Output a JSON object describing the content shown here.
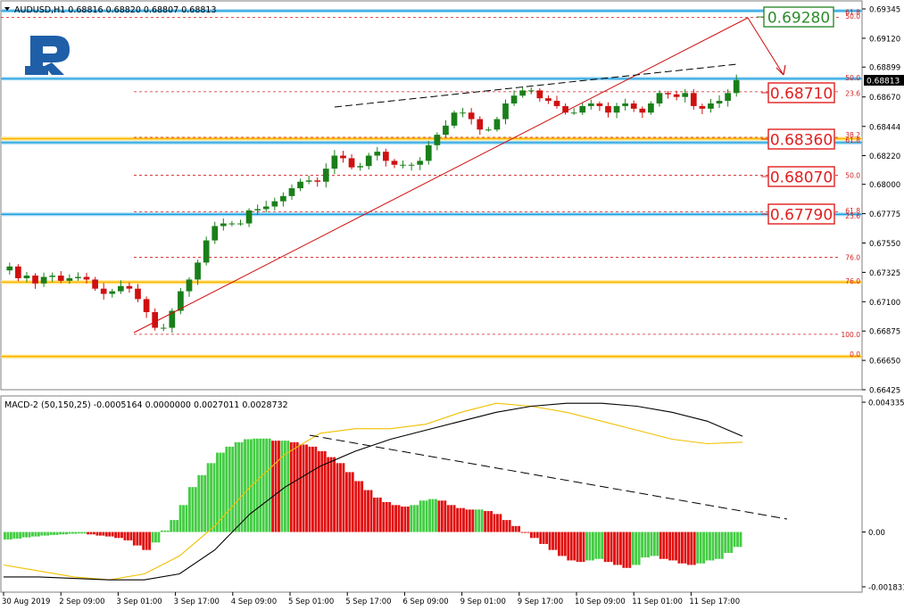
{
  "header": {
    "symbol_line": "AUDUSD,H1  0.68816 0.68820 0.68807 0.68813"
  },
  "price_axis": {
    "ticks": [
      "0.69345",
      "0.69120",
      "0.68899",
      "0.68670",
      "0.68444",
      "0.68220",
      "0.68000",
      "0.67775",
      "0.67550",
      "0.67325",
      "0.67100",
      "0.66875",
      "0.66650",
      "0.66425"
    ],
    "current_price": "0.68813"
  },
  "macd": {
    "header": "MACD-2 (50,150,25) -0.0005164 0.0000000 0.0027011 0.0028732",
    "axis_ticks": [
      "0.0043352",
      "0.00",
      "-0.001831"
    ]
  },
  "time_axis": {
    "labels": [
      "30 Aug 2019",
      "2 Sep 09:00",
      "3 Sep 01:00",
      "3 Sep 17:00",
      "4 Sep 09:00",
      "5 Sep 01:00",
      "5 Sep 17:00",
      "6 Sep 09:00",
      "9 Sep 01:00",
      "9 Sep 17:00",
      "10 Sep 09:00",
      "11 Sep 01:00",
      "11 Sep 17:00"
    ]
  },
  "callouts": [
    {
      "text": "0.69280",
      "color": "#2e8b2e"
    },
    {
      "text": "0.68710",
      "color": "#e02020"
    },
    {
      "text": "0.68360",
      "color": "#e02020"
    },
    {
      "text": "0.68070",
      "color": "#e02020"
    },
    {
      "text": "0.67790",
      "color": "#e02020"
    }
  ],
  "fib_labels": [
    "61.8",
    "50.0",
    "50.0",
    "23.6",
    "38.2",
    "61.8",
    "50.0",
    "61.8",
    "23.6",
    "76.0",
    "76.0",
    "100.0",
    "0.0"
  ],
  "colors": {
    "bull_candle": "#1a7f1a",
    "bear_candle": "#d01010",
    "hist_up": "#44cc44",
    "hist_down": "#e01010",
    "fib_line": "#d02020",
    "blue_level": "#1e9fe0",
    "orange_level": "#ffb000",
    "trend_red": "#d01010",
    "logo_blue": "#1f5fa8"
  },
  "chart_data": {
    "type": "candlestick",
    "symbol": "AUDUSD",
    "timeframe": "H1",
    "ylim": [
      0.66425,
      0.69345
    ],
    "levels": {
      "resistance_blue": [
        0.6933,
        0.6881,
        0.6832,
        0.6777
      ],
      "support_orange": [
        0.6835,
        0.6725,
        0.6668
      ],
      "fib_dashed": [
        0.6928,
        0.6871,
        0.6836,
        0.6807,
        0.6779,
        0.6744,
        0.6685
      ],
      "targets": [
        0.6928,
        0.6871,
        0.6836,
        0.6807,
        0.6779
      ]
    },
    "close_path": [
      0.6737,
      0.6728,
      0.673,
      0.6724,
      0.6729,
      0.673,
      0.6726,
      0.6728,
      0.6729,
      0.6727,
      0.672,
      0.6716,
      0.6718,
      0.6722,
      0.672,
      0.6712,
      0.6702,
      0.669,
      0.669,
      0.6703,
      0.6718,
      0.6727,
      0.674,
      0.6757,
      0.6768,
      0.677,
      0.677,
      0.677,
      0.678,
      0.6781,
      0.6783,
      0.6787,
      0.6791,
      0.6797,
      0.6802,
      0.6803,
      0.6802,
      0.6812,
      0.6822,
      0.682,
      0.6813,
      0.6814,
      0.6822,
      0.6825,
      0.6818,
      0.6815,
      0.6815,
      0.6815,
      0.6818,
      0.683,
      0.6838,
      0.6845,
      0.6855,
      0.6855,
      0.685,
      0.6842,
      0.6842,
      0.685,
      0.6862,
      0.6868,
      0.6872,
      0.6872,
      0.6866,
      0.6864,
      0.686,
      0.6855,
      0.6855,
      0.686,
      0.6862,
      0.686,
      0.6855,
      0.686,
      0.6862,
      0.6858,
      0.6855,
      0.6862,
      0.687,
      0.6869,
      0.6867,
      0.687,
      0.686,
      0.6858,
      0.6862,
      0.6864,
      0.687,
      0.688
    ],
    "macd_hist": [
      -0.00025,
      -0.00022,
      -0.00018,
      -0.00015,
      -0.00012,
      -0.0001,
      -8e-05,
      -6e-05,
      -5e-05,
      -8e-05,
      -0.00012,
      -0.00015,
      -0.0002,
      -0.00028,
      -0.00045,
      -0.0006,
      -0.00035,
      5e-05,
      0.0004,
      0.0009,
      0.0015,
      0.0019,
      0.0023,
      0.00265,
      0.00285,
      0.003,
      0.0031,
      0.00312,
      0.00312,
      0.00305,
      0.00305,
      0.003,
      0.00292,
      0.00285,
      0.0027,
      0.0025,
      0.0023,
      0.002,
      0.0017,
      0.0014,
      0.00115,
      0.001,
      0.0009,
      0.00085,
      0.0009,
      0.00105,
      0.0011,
      0.00105,
      0.0009,
      0.0008,
      0.00075,
      0.00075,
      0.0007,
      0.0006,
      0.0004,
      0.0002,
      0.0,
      -0.0002,
      -0.0004,
      -0.0006,
      -0.0008,
      -0.00095,
      -0.001,
      -0.00095,
      -0.0009,
      -0.001,
      -0.0011,
      -0.0012,
      -0.0011,
      -0.00085,
      -0.0008,
      -0.0009,
      -0.00095,
      -0.00105,
      -0.0011,
      -0.00105,
      -0.00095,
      -0.0009,
      -0.0007,
      -0.0005
    ],
    "macd_signal_black": [
      -0.0015,
      -0.0015,
      -0.00155,
      -0.0016,
      -0.0016,
      -0.0014,
      -0.0006,
      0.0006,
      0.0015,
      0.0022,
      0.0027,
      0.0031,
      0.0034,
      0.0037,
      0.004,
      0.0042,
      0.0043,
      0.0043,
      0.0042,
      0.004,
      0.0037,
      0.0032
    ],
    "macd_main_yellow": [
      -0.0011,
      -0.0013,
      -0.0015,
      -0.0016,
      -0.0014,
      -0.0008,
      0.0002,
      0.0015,
      0.0026,
      0.0033,
      0.00345,
      0.00345,
      0.0036,
      0.004,
      0.0043,
      0.0042,
      0.004,
      0.0037,
      0.0034,
      0.0031,
      0.00295,
      0.003
    ]
  }
}
